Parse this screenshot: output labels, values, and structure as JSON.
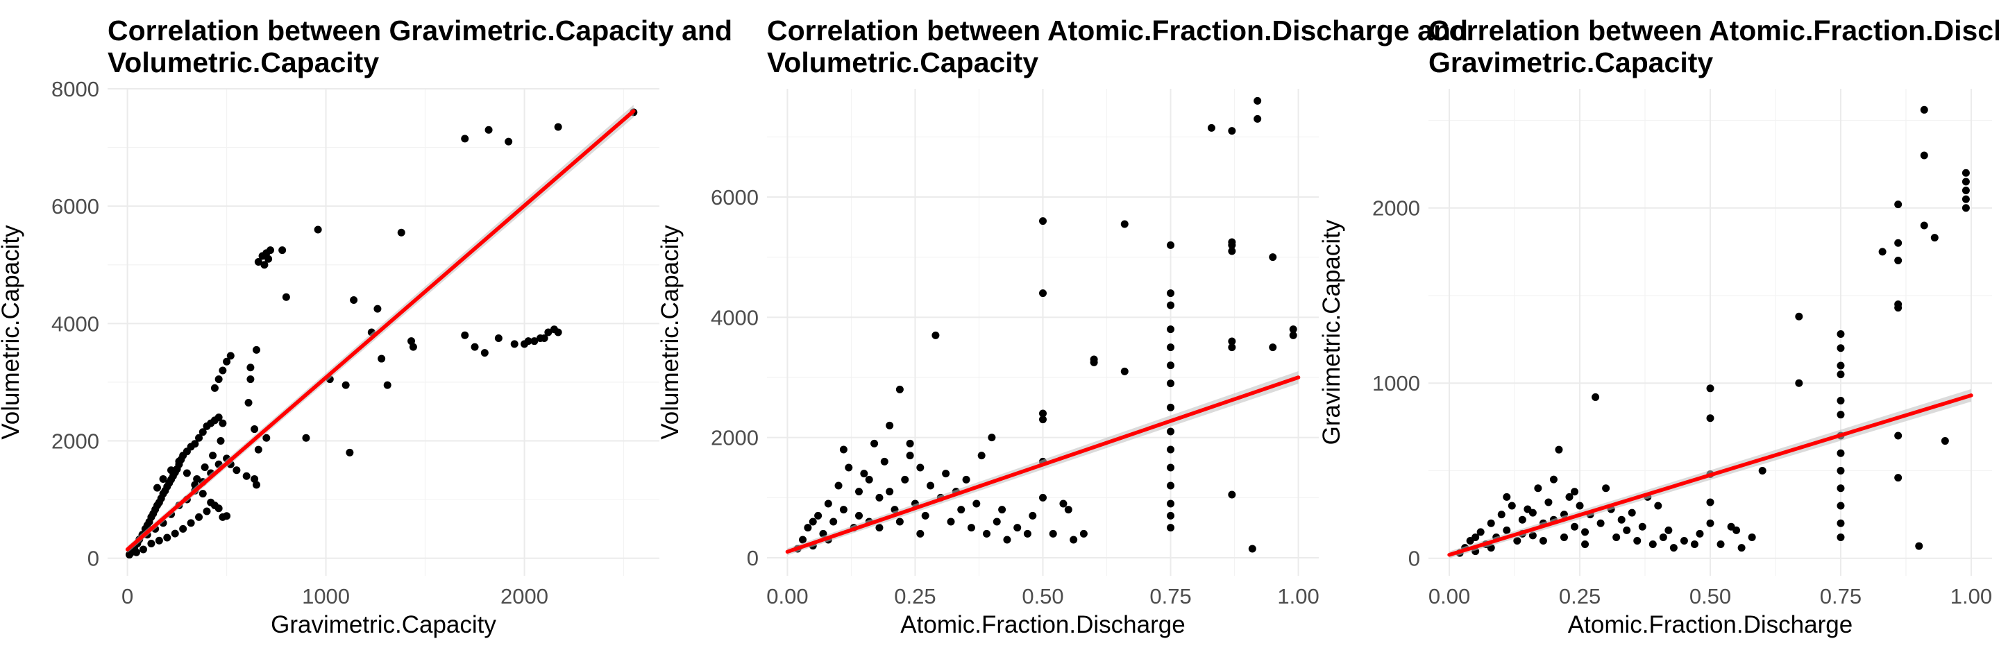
{
  "chart_data": [
    {
      "type": "scatter",
      "title": "Correlation between Gravimetric.Capacity and Volumetric.Capacity",
      "title_lines": [
        "Correlation between Gravimetric.Capacity and",
        "Volumetric.Capacity"
      ],
      "xlabel": "Gravimetric.Capacity",
      "ylabel": "Volumetric.Capacity",
      "xlim": [
        -100,
        2680
      ],
      "ylim": [
        -300,
        8000
      ],
      "x_ticks": [
        0,
        1000,
        2000
      ],
      "x_tick_labels": [
        "0",
        "1000",
        "2000"
      ],
      "y_ticks": [
        0,
        2000,
        4000,
        6000,
        8000
      ],
      "y_tick_labels": [
        "0",
        "2000",
        "4000",
        "6000",
        "8000"
      ],
      "grid": true,
      "fit_line": {
        "color": "#ff0000",
        "x": [
          0,
          2550
        ],
        "y": [
          150,
          7620
        ]
      },
      "point_color": "#000000",
      "points": [
        [
          20,
          100
        ],
        [
          35,
          180
        ],
        [
          50,
          250
        ],
        [
          60,
          320
        ],
        [
          75,
          400
        ],
        [
          90,
          500
        ],
        [
          100,
          560
        ],
        [
          110,
          620
        ],
        [
          120,
          700
        ],
        [
          130,
          760
        ],
        [
          140,
          830
        ],
        [
          150,
          900
        ],
        [
          160,
          950
        ],
        [
          170,
          1020
        ],
        [
          180,
          1100
        ],
        [
          190,
          1150
        ],
        [
          200,
          1220
        ],
        [
          210,
          1280
        ],
        [
          220,
          1340
        ],
        [
          230,
          1400
        ],
        [
          240,
          1460
        ],
        [
          250,
          1520
        ],
        [
          260,
          1600
        ],
        [
          270,
          1680
        ],
        [
          280,
          1750
        ],
        [
          300,
          1820
        ],
        [
          320,
          1900
        ],
        [
          340,
          1950
        ],
        [
          360,
          2050
        ],
        [
          380,
          2150
        ],
        [
          400,
          2250
        ],
        [
          420,
          2300
        ],
        [
          440,
          2350
        ],
        [
          460,
          2400
        ],
        [
          480,
          2300
        ],
        [
          45,
          100
        ],
        [
          80,
          150
        ],
        [
          120,
          250
        ],
        [
          160,
          300
        ],
        [
          200,
          350
        ],
        [
          240,
          420
        ],
        [
          280,
          500
        ],
        [
          320,
          600
        ],
        [
          360,
          700
        ],
        [
          400,
          800
        ],
        [
          440,
          900
        ],
        [
          150,
          1200
        ],
        [
          180,
          1350
        ],
        [
          220,
          1500
        ],
        [
          260,
          1650
        ],
        [
          300,
          1450
        ],
        [
          340,
          1250
        ],
        [
          380,
          1100
        ],
        [
          420,
          950
        ],
        [
          460,
          850
        ],
        [
          100,
          400
        ],
        [
          140,
          500
        ],
        [
          180,
          600
        ],
        [
          220,
          750
        ],
        [
          260,
          900
        ],
        [
          300,
          1000
        ],
        [
          340,
          1150
        ],
        [
          380,
          1300
        ],
        [
          420,
          1450
        ],
        [
          460,
          1600
        ],
        [
          500,
          1700
        ],
        [
          470,
          2000
        ],
        [
          430,
          1750
        ],
        [
          390,
          1550
        ],
        [
          350,
          1350
        ],
        [
          480,
          3200
        ],
        [
          500,
          3350
        ],
        [
          520,
          3450
        ],
        [
          460,
          3050
        ],
        [
          440,
          2900
        ],
        [
          520,
          1600
        ],
        [
          550,
          1500
        ],
        [
          600,
          1400
        ],
        [
          640,
          1350
        ],
        [
          650,
          1250
        ],
        [
          480,
          700
        ],
        [
          500,
          720
        ],
        [
          660,
          1850
        ],
        [
          640,
          2200
        ],
        [
          610,
          2650
        ],
        [
          620,
          3050
        ],
        [
          620,
          3250
        ],
        [
          650,
          3550
        ],
        [
          700,
          2050
        ],
        [
          800,
          4450
        ],
        [
          660,
          5050
        ],
        [
          680,
          5150
        ],
        [
          700,
          5200
        ],
        [
          720,
          5250
        ],
        [
          710,
          5100
        ],
        [
          690,
          5000
        ],
        [
          780,
          5250
        ],
        [
          960,
          5600
        ],
        [
          900,
          2050
        ],
        [
          1020,
          3050
        ],
        [
          1100,
          2950
        ],
        [
          1120,
          1800
        ],
        [
          1140,
          4400
        ],
        [
          1230,
          3850
        ],
        [
          1260,
          4250
        ],
        [
          1280,
          3400
        ],
        [
          1310,
          2950
        ],
        [
          1380,
          5550
        ],
        [
          1430,
          3700
        ],
        [
          1440,
          3600
        ],
        [
          1700,
          7150
        ],
        [
          1820,
          7300
        ],
        [
          1920,
          7100
        ],
        [
          2170,
          7350
        ],
        [
          2550,
          7600
        ],
        [
          1700,
          3800
        ],
        [
          1750,
          3600
        ],
        [
          1800,
          3500
        ],
        [
          1870,
          3750
        ],
        [
          1950,
          3650
        ],
        [
          2020,
          3700
        ],
        [
          2050,
          3700
        ],
        [
          2080,
          3750
        ],
        [
          2100,
          3750
        ],
        [
          2120,
          3850
        ],
        [
          2150,
          3900
        ],
        [
          2170,
          3850
        ],
        [
          2000,
          3650
        ],
        [
          10,
          60
        ],
        [
          30,
          120
        ]
      ]
    },
    {
      "type": "scatter",
      "title": "Correlation between Atomic.Fraction.Discharge and Volumetric.Capacity",
      "title_lines": [
        "Correlation between Atomic.Fraction.Discharge and",
        "Volumetric.Capacity"
      ],
      "xlabel": "Atomic.Fraction.Discharge",
      "ylabel": "Volumetric.Capacity",
      "xlim": [
        -0.04,
        1.04
      ],
      "ylim": [
        -300,
        7800
      ],
      "x_ticks": [
        0,
        0.25,
        0.5,
        0.75,
        1
      ],
      "x_tick_labels": [
        "0.00",
        "0.25",
        "0.50",
        "0.75",
        "1.00"
      ],
      "y_ticks": [
        0,
        2000,
        4000,
        6000
      ],
      "y_tick_labels": [
        "0",
        "2000",
        "4000",
        "6000"
      ],
      "grid": true,
      "fit_line": {
        "color": "#ff0000",
        "x": [
          0,
          1
        ],
        "y": [
          100,
          3000
        ]
      },
      "point_color": "#000000",
      "points": [
        [
          0.02,
          150
        ],
        [
          0.03,
          300
        ],
        [
          0.04,
          500
        ],
        [
          0.05,
          200
        ],
        [
          0.06,
          700
        ],
        [
          0.07,
          400
        ],
        [
          0.08,
          900
        ],
        [
          0.09,
          600
        ],
        [
          0.1,
          1200
        ],
        [
          0.11,
          800
        ],
        [
          0.12,
          1500
        ],
        [
          0.13,
          500
        ],
        [
          0.14,
          1100
        ],
        [
          0.15,
          1400
        ],
        [
          0.16,
          600
        ],
        [
          0.17,
          1900
        ],
        [
          0.18,
          1000
        ],
        [
          0.19,
          1600
        ],
        [
          0.2,
          2200
        ],
        [
          0.21,
          800
        ],
        [
          0.22,
          2800
        ],
        [
          0.23,
          1300
        ],
        [
          0.24,
          1700
        ],
        [
          0.25,
          900
        ],
        [
          0.26,
          1500
        ],
        [
          0.27,
          700
        ],
        [
          0.28,
          1200
        ],
        [
          0.29,
          3700
        ],
        [
          0.3,
          1000
        ],
        [
          0.31,
          1400
        ],
        [
          0.32,
          600
        ],
        [
          0.33,
          1100
        ],
        [
          0.34,
          800
        ],
        [
          0.35,
          1300
        ],
        [
          0.36,
          500
        ],
        [
          0.37,
          900
        ],
        [
          0.38,
          1700
        ],
        [
          0.39,
          400
        ],
        [
          0.4,
          2000
        ],
        [
          0.41,
          600
        ],
        [
          0.42,
          800
        ],
        [
          0.43,
          300
        ],
        [
          0.45,
          500
        ],
        [
          0.47,
          400
        ],
        [
          0.48,
          700
        ],
        [
          0.5,
          2400
        ],
        [
          0.5,
          2300
        ],
        [
          0.5,
          5600
        ],
        [
          0.5,
          4400
        ],
        [
          0.5,
          1600
        ],
        [
          0.5,
          1000
        ],
        [
          0.52,
          400
        ],
        [
          0.54,
          900
        ],
        [
          0.55,
          800
        ],
        [
          0.56,
          300
        ],
        [
          0.58,
          400
        ],
        [
          0.6,
          3300
        ],
        [
          0.6,
          3250
        ],
        [
          0.66,
          5550
        ],
        [
          0.66,
          3100
        ],
        [
          0.75,
          5200
        ],
        [
          0.75,
          4400
        ],
        [
          0.75,
          4200
        ],
        [
          0.75,
          3800
        ],
        [
          0.75,
          3500
        ],
        [
          0.75,
          3200
        ],
        [
          0.75,
          2900
        ],
        [
          0.75,
          2500
        ],
        [
          0.75,
          2100
        ],
        [
          0.75,
          1800
        ],
        [
          0.75,
          1500
        ],
        [
          0.75,
          1200
        ],
        [
          0.75,
          900
        ],
        [
          0.75,
          700
        ],
        [
          0.75,
          500
        ],
        [
          0.83,
          7150
        ],
        [
          0.87,
          7100
        ],
        [
          0.92,
          7600
        ],
        [
          0.92,
          7300
        ],
        [
          0.87,
          5200
        ],
        [
          0.87,
          5100
        ],
        [
          0.87,
          5250
        ],
        [
          0.87,
          3600
        ],
        [
          0.87,
          3500
        ],
        [
          0.87,
          1050
        ],
        [
          0.91,
          150
        ],
        [
          0.95,
          5000
        ],
        [
          0.95,
          3500
        ],
        [
          0.99,
          3800
        ],
        [
          0.99,
          3700
        ],
        [
          0.05,
          600
        ],
        [
          0.08,
          300
        ],
        [
          0.11,
          1800
        ],
        [
          0.14,
          700
        ],
        [
          0.16,
          1300
        ],
        [
          0.18,
          500
        ],
        [
          0.2,
          1100
        ],
        [
          0.22,
          600
        ],
        [
          0.24,
          1900
        ],
        [
          0.26,
          400
        ]
      ]
    },
    {
      "type": "scatter",
      "title": "Correlation between Atomic.Fraction.Discharge and Gravimetric.Capacity",
      "title_lines": [
        "Correlation between Atomic.Fraction.Discharge and",
        "Gravimetric.Capacity"
      ],
      "xlabel": "Atomic.Fraction.Discharge",
      "ylabel": "Gravimetric.Capacity",
      "xlim": [
        -0.04,
        1.04
      ],
      "ylim": [
        -100,
        2680
      ],
      "x_ticks": [
        0,
        0.25,
        0.5,
        0.75,
        1
      ],
      "x_tick_labels": [
        "0.00",
        "0.25",
        "0.50",
        "0.75",
        "1.00"
      ],
      "y_ticks": [
        0,
        1000,
        2000
      ],
      "y_tick_labels": [
        "0",
        "1000",
        "2000"
      ],
      "grid": true,
      "fit_line": {
        "color": "#ff0000",
        "x": [
          0,
          1
        ],
        "y": [
          20,
          930
        ]
      },
      "point_color": "#000000",
      "points": [
        [
          0.02,
          30
        ],
        [
          0.03,
          60
        ],
        [
          0.04,
          100
        ],
        [
          0.05,
          40
        ],
        [
          0.06,
          150
        ],
        [
          0.07,
          80
        ],
        [
          0.08,
          200
        ],
        [
          0.09,
          120
        ],
        [
          0.1,
          250
        ],
        [
          0.11,
          160
        ],
        [
          0.12,
          300
        ],
        [
          0.13,
          100
        ],
        [
          0.14,
          220
        ],
        [
          0.15,
          280
        ],
        [
          0.16,
          130
        ],
        [
          0.17,
          400
        ],
        [
          0.18,
          200
        ],
        [
          0.19,
          320
        ],
        [
          0.2,
          450
        ],
        [
          0.21,
          620
        ],
        [
          0.22,
          250
        ],
        [
          0.23,
          350
        ],
        [
          0.24,
          180
        ],
        [
          0.25,
          300
        ],
        [
          0.26,
          150
        ],
        [
          0.27,
          250
        ],
        [
          0.28,
          920
        ],
        [
          0.29,
          200
        ],
        [
          0.3,
          400
        ],
        [
          0.31,
          280
        ],
        [
          0.32,
          120
        ],
        [
          0.33,
          220
        ],
        [
          0.34,
          160
        ],
        [
          0.35,
          260
        ],
        [
          0.36,
          100
        ],
        [
          0.37,
          180
        ],
        [
          0.38,
          350
        ],
        [
          0.39,
          80
        ],
        [
          0.4,
          300
        ],
        [
          0.41,
          120
        ],
        [
          0.42,
          160
        ],
        [
          0.43,
          60
        ],
        [
          0.45,
          100
        ],
        [
          0.47,
          80
        ],
        [
          0.48,
          140
        ],
        [
          0.5,
          970
        ],
        [
          0.5,
          800
        ],
        [
          0.5,
          480
        ],
        [
          0.5,
          320
        ],
        [
          0.5,
          200
        ],
        [
          0.52,
          80
        ],
        [
          0.54,
          180
        ],
        [
          0.55,
          160
        ],
        [
          0.56,
          60
        ],
        [
          0.58,
          120
        ],
        [
          0.6,
          500
        ],
        [
          0.67,
          1380
        ],
        [
          0.67,
          1000
        ],
        [
          0.75,
          1280
        ],
        [
          0.75,
          1200
        ],
        [
          0.75,
          1100
        ],
        [
          0.75,
          1050
        ],
        [
          0.75,
          900
        ],
        [
          0.75,
          820
        ],
        [
          0.75,
          700
        ],
        [
          0.75,
          600
        ],
        [
          0.75,
          500
        ],
        [
          0.75,
          400
        ],
        [
          0.75,
          300
        ],
        [
          0.75,
          200
        ],
        [
          0.75,
          120
        ],
        [
          0.83,
          1750
        ],
        [
          0.86,
          2020
        ],
        [
          0.86,
          1800
        ],
        [
          0.86,
          1700
        ],
        [
          0.86,
          1450
        ],
        [
          0.86,
          1430
        ],
        [
          0.86,
          700
        ],
        [
          0.86,
          460
        ],
        [
          0.9,
          70
        ],
        [
          0.91,
          2560
        ],
        [
          0.91,
          2300
        ],
        [
          0.91,
          1900
        ],
        [
          0.93,
          1830
        ],
        [
          0.95,
          670
        ],
        [
          0.99,
          2200
        ],
        [
          0.99,
          2150
        ],
        [
          0.99,
          2100
        ],
        [
          0.99,
          2050
        ],
        [
          0.99,
          2000
        ],
        [
          0.05,
          120
        ],
        [
          0.08,
          60
        ],
        [
          0.11,
          350
        ],
        [
          0.14,
          140
        ],
        [
          0.16,
          260
        ],
        [
          0.18,
          100
        ],
        [
          0.2,
          220
        ],
        [
          0.22,
          120
        ],
        [
          0.24,
          380
        ],
        [
          0.26,
          80
        ]
      ]
    }
  ]
}
